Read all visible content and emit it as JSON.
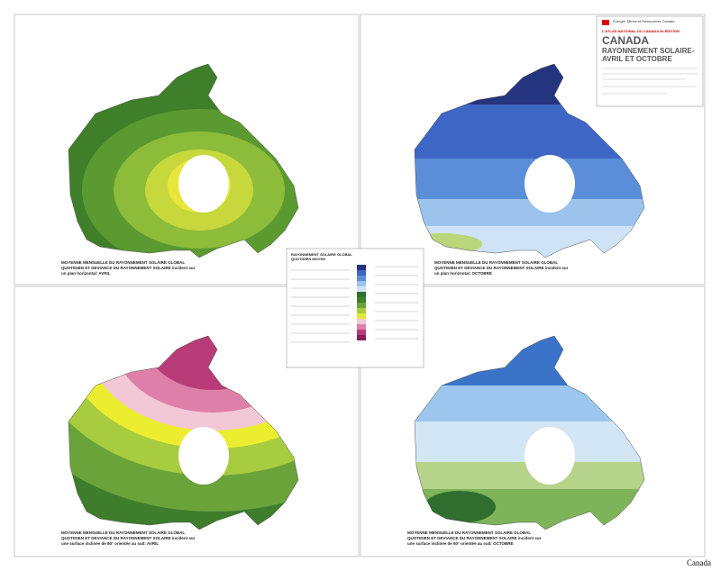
{
  "header": {
    "agency": "Énergie, Mines et Ressources Canada",
    "atlas": "L'ATLAS NATIONAL DU CANADA 5e ÉDITION",
    "title": "CANADA",
    "subtitle_1": "RAYONNEMENT SOLAIRE-",
    "subtitle_2": "AVRIL ET OCTOBRE"
  },
  "maps": [
    {
      "caption": "MOYENNE MENSUELLE DU RAYONNEMENT SOLAIRE GLOBAL QUOTIDIEN ET DEVIANCE DU RAYONNEMENT SOLAIRE incident sur un plan horizontal: AVRIL"
    },
    {
      "caption": "MOYENNE MENSUELLE DU RAYONNEMENT SOLAIRE GLOBAL QUOTIDIEN ET DEVIANCE DU RAYONNEMENT SOLAIRE incident sur un plan horizontal: OCTOBRE"
    },
    {
      "caption": "MOYENNE MENSUELLE DU RAYONNEMENT SOLAIRE GLOBAL QUOTIDIEN ET DEVIANCE DU RAYONNEMENT SOLAIRE incident sur une surface inclinée de 60° orientée au sud: AVRIL"
    },
    {
      "caption": "MOYENNE MENSUELLE DU RAYONNEMENT SOLAIRE GLOBAL QUOTIDIEN ET DEVIANCE DU RAYONNEMENT SOLAIRE incident sur une surface inclinée de 60° orientée au sud: OCTOBRE"
    }
  ],
  "legend": {
    "title": "RAYONNEMENT SOLAIRE GLOBAL QUOTIDIEN MOYEN"
  },
  "footer": {
    "wordmark": "Canada"
  }
}
